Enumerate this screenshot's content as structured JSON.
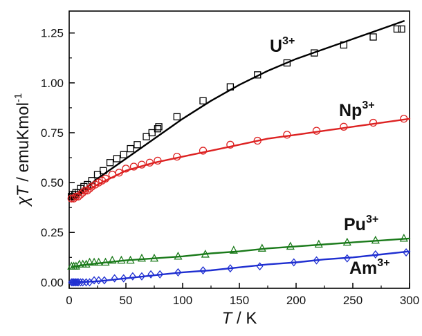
{
  "chart_data": {
    "type": "scatter",
    "title": "",
    "xlabel": {
      "symbol": "T",
      "unit": " / K"
    },
    "ylabel": {
      "chi": "χ",
      "symbol": "T",
      "unit": " / emuKmol",
      "exponent": "-1"
    },
    "xlim": [
      0,
      300
    ],
    "ylim": [
      -0.03,
      1.36
    ],
    "xticks": [
      "0",
      "50",
      "100",
      "150",
      "200",
      "250",
      "300"
    ],
    "yticks": [
      "0.00",
      "0.25",
      "0.50",
      "0.75",
      "1.00",
      "1.25"
    ],
    "grid": false,
    "series": [
      {
        "name": "U",
        "charge": "3+",
        "marker": "square",
        "color": "#000000",
        "points": [
          [
            2,
            0.43
          ],
          [
            3,
            0.44
          ],
          [
            4,
            0.43
          ],
          [
            5,
            0.44
          ],
          [
            6,
            0.45
          ],
          [
            8,
            0.45
          ],
          [
            10,
            0.47
          ],
          [
            13,
            0.48
          ],
          [
            16,
            0.49
          ],
          [
            20,
            0.51
          ],
          [
            25,
            0.54
          ],
          [
            30,
            0.56
          ],
          [
            36,
            0.6
          ],
          [
            42,
            0.62
          ],
          [
            48,
            0.64
          ],
          [
            54,
            0.67
          ],
          [
            60,
            0.69
          ],
          [
            68,
            0.73
          ],
          [
            73,
            0.75
          ],
          [
            78,
            0.77
          ],
          [
            79,
            0.78
          ],
          [
            95,
            0.83
          ],
          [
            118,
            0.91
          ],
          [
            142,
            0.98
          ],
          [
            166,
            1.04
          ],
          [
            192,
            1.1
          ],
          [
            216,
            1.15
          ],
          [
            242,
            1.19
          ],
          [
            268,
            1.23
          ],
          [
            289,
            1.27
          ],
          [
            293,
            1.27
          ]
        ],
        "fit": [
          [
            2,
            0.42
          ],
          [
            10,
            0.45
          ],
          [
            25,
            0.52
          ],
          [
            50,
            0.62
          ],
          [
            75,
            0.72
          ],
          [
            100,
            0.82
          ],
          [
            125,
            0.91
          ],
          [
            150,
            0.99
          ],
          [
            175,
            1.06
          ],
          [
            200,
            1.12
          ],
          [
            225,
            1.17
          ],
          [
            250,
            1.22
          ],
          [
            275,
            1.27
          ],
          [
            295,
            1.31
          ]
        ]
      },
      {
        "name": "Np",
        "charge": "3+",
        "marker": "circle",
        "color": "#dd2222",
        "points": [
          [
            2,
            0.42
          ],
          [
            4,
            0.42
          ],
          [
            6,
            0.43
          ],
          [
            8,
            0.43
          ],
          [
            10,
            0.44
          ],
          [
            12,
            0.45
          ],
          [
            14,
            0.46
          ],
          [
            16,
            0.46
          ],
          [
            18,
            0.47
          ],
          [
            20,
            0.48
          ],
          [
            23,
            0.49
          ],
          [
            26,
            0.5
          ],
          [
            29,
            0.51
          ],
          [
            32,
            0.52
          ],
          [
            38,
            0.54
          ],
          [
            44,
            0.55
          ],
          [
            50,
            0.57
          ],
          [
            57,
            0.58
          ],
          [
            64,
            0.59
          ],
          [
            71,
            0.6
          ],
          [
            78,
            0.61
          ],
          [
            95,
            0.63
          ],
          [
            118,
            0.66
          ],
          [
            142,
            0.69
          ],
          [
            166,
            0.71
          ],
          [
            192,
            0.74
          ],
          [
            218,
            0.76
          ],
          [
            242,
            0.78
          ],
          [
            268,
            0.8
          ],
          [
            295,
            0.82
          ]
        ],
        "fit": [
          [
            2,
            0.41
          ],
          [
            10,
            0.44
          ],
          [
            25,
            0.49
          ],
          [
            50,
            0.56
          ],
          [
            75,
            0.6
          ],
          [
            100,
            0.63
          ],
          [
            125,
            0.66
          ],
          [
            150,
            0.69
          ],
          [
            175,
            0.72
          ],
          [
            200,
            0.74
          ],
          [
            225,
            0.76
          ],
          [
            250,
            0.78
          ],
          [
            275,
            0.8
          ],
          [
            300,
            0.82
          ]
        ]
      },
      {
        "name": "Pu",
        "charge": "3+",
        "marker": "triangle",
        "color": "#1a7a1a",
        "points": [
          [
            2,
            0.08
          ],
          [
            4,
            0.08
          ],
          [
            6,
            0.08
          ],
          [
            9,
            0.09
          ],
          [
            12,
            0.09
          ],
          [
            15,
            0.09
          ],
          [
            18,
            0.1
          ],
          [
            22,
            0.1
          ],
          [
            26,
            0.1
          ],
          [
            32,
            0.1
          ],
          [
            38,
            0.11
          ],
          [
            46,
            0.11
          ],
          [
            54,
            0.11
          ],
          [
            64,
            0.12
          ],
          [
            75,
            0.12
          ],
          [
            96,
            0.13
          ],
          [
            120,
            0.14
          ],
          [
            145,
            0.16
          ],
          [
            170,
            0.17
          ],
          [
            195,
            0.18
          ],
          [
            220,
            0.19
          ],
          [
            245,
            0.2
          ],
          [
            270,
            0.21
          ],
          [
            295,
            0.22
          ]
        ],
        "fit": [
          [
            2,
            0.075
          ],
          [
            10,
            0.085
          ],
          [
            25,
            0.095
          ],
          [
            50,
            0.11
          ],
          [
            75,
            0.12
          ],
          [
            100,
            0.13
          ],
          [
            125,
            0.145
          ],
          [
            150,
            0.155
          ],
          [
            175,
            0.17
          ],
          [
            200,
            0.18
          ],
          [
            225,
            0.19
          ],
          [
            250,
            0.2
          ],
          [
            275,
            0.21
          ],
          [
            300,
            0.22
          ]
        ]
      },
      {
        "name": "Am",
        "charge": "3+",
        "marker": "diamond",
        "color": "#1f2fd1",
        "points": [
          [
            2,
            0
          ],
          [
            3,
            0
          ],
          [
            4,
            0
          ],
          [
            5,
            0
          ],
          [
            6,
            0
          ],
          [
            7,
            0
          ],
          [
            8,
            0
          ],
          [
            10,
            0
          ],
          [
            12,
            0
          ],
          [
            15,
            0
          ],
          [
            18,
            0
          ],
          [
            22,
            0.01
          ],
          [
            26,
            0.01
          ],
          [
            31,
            0.01
          ],
          [
            40,
            0.02
          ],
          [
            48,
            0.02
          ],
          [
            56,
            0.03
          ],
          [
            64,
            0.03
          ],
          [
            72,
            0.04
          ],
          [
            80,
            0.04
          ],
          [
            96,
            0.05
          ],
          [
            118,
            0.06
          ],
          [
            142,
            0.07
          ],
          [
            168,
            0.08
          ],
          [
            198,
            0.1
          ],
          [
            218,
            0.11
          ],
          [
            245,
            0.12
          ],
          [
            270,
            0.14
          ],
          [
            297,
            0.15
          ]
        ],
        "fit": [
          [
            2,
            0
          ],
          [
            25,
            0.005
          ],
          [
            50,
            0.02
          ],
          [
            75,
            0.035
          ],
          [
            100,
            0.05
          ],
          [
            125,
            0.06
          ],
          [
            150,
            0.075
          ],
          [
            175,
            0.09
          ],
          [
            200,
            0.1
          ],
          [
            225,
            0.115
          ],
          [
            250,
            0.125
          ],
          [
            275,
            0.14
          ],
          [
            300,
            0.155
          ]
        ]
      }
    ]
  }
}
